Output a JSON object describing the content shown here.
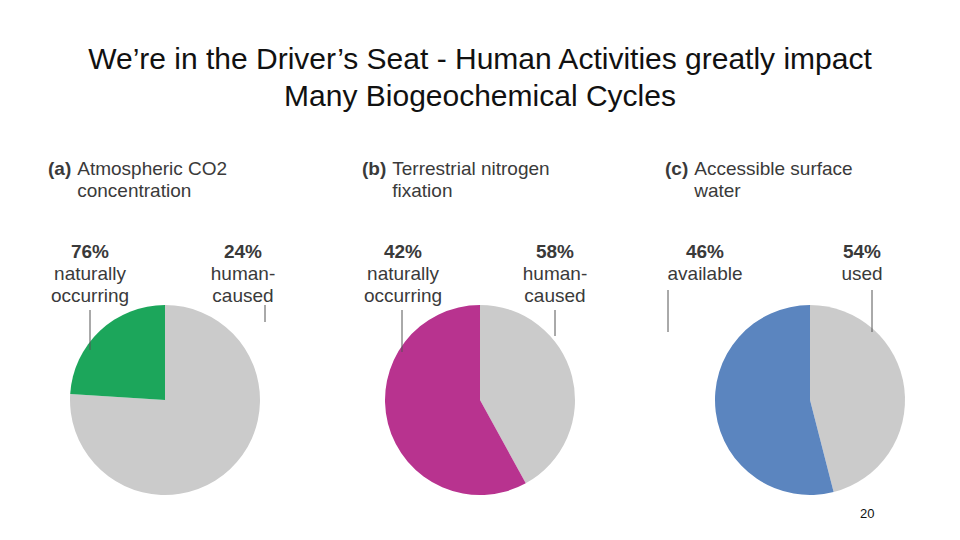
{
  "title": "We’re in the Driver’s Seat - Human Activities greatly impact Many Biogeochemical Cycles",
  "page_number": "20",
  "chart_data": [
    {
      "type": "pie",
      "title": "(a) Atmospheric CO2 concentration",
      "categories": [
        "naturally occurring",
        "human-caused"
      ],
      "values": [
        76,
        24
      ],
      "value_labels": [
        "76%",
        "24%"
      ],
      "colors": [
        "#cbcbcb",
        "#1ca65b"
      ],
      "data_labels": true
    },
    {
      "type": "pie",
      "title": "(b) Terrestrial nitrogen fixation",
      "categories": [
        "naturally occurring",
        "human-caused"
      ],
      "values": [
        42,
        58
      ],
      "value_labels": [
        "42%",
        "58%"
      ],
      "colors": [
        "#cbcbcb",
        "#b8338f"
      ],
      "data_labels": true
    },
    {
      "type": "pie",
      "title": "(c) Accessible surface water",
      "categories": [
        "available",
        "used"
      ],
      "values": [
        46,
        54
      ],
      "value_labels": [
        "46%",
        "54%"
      ],
      "colors": [
        "#cbcbcb",
        "#5b85bf"
      ],
      "data_labels": true
    }
  ]
}
